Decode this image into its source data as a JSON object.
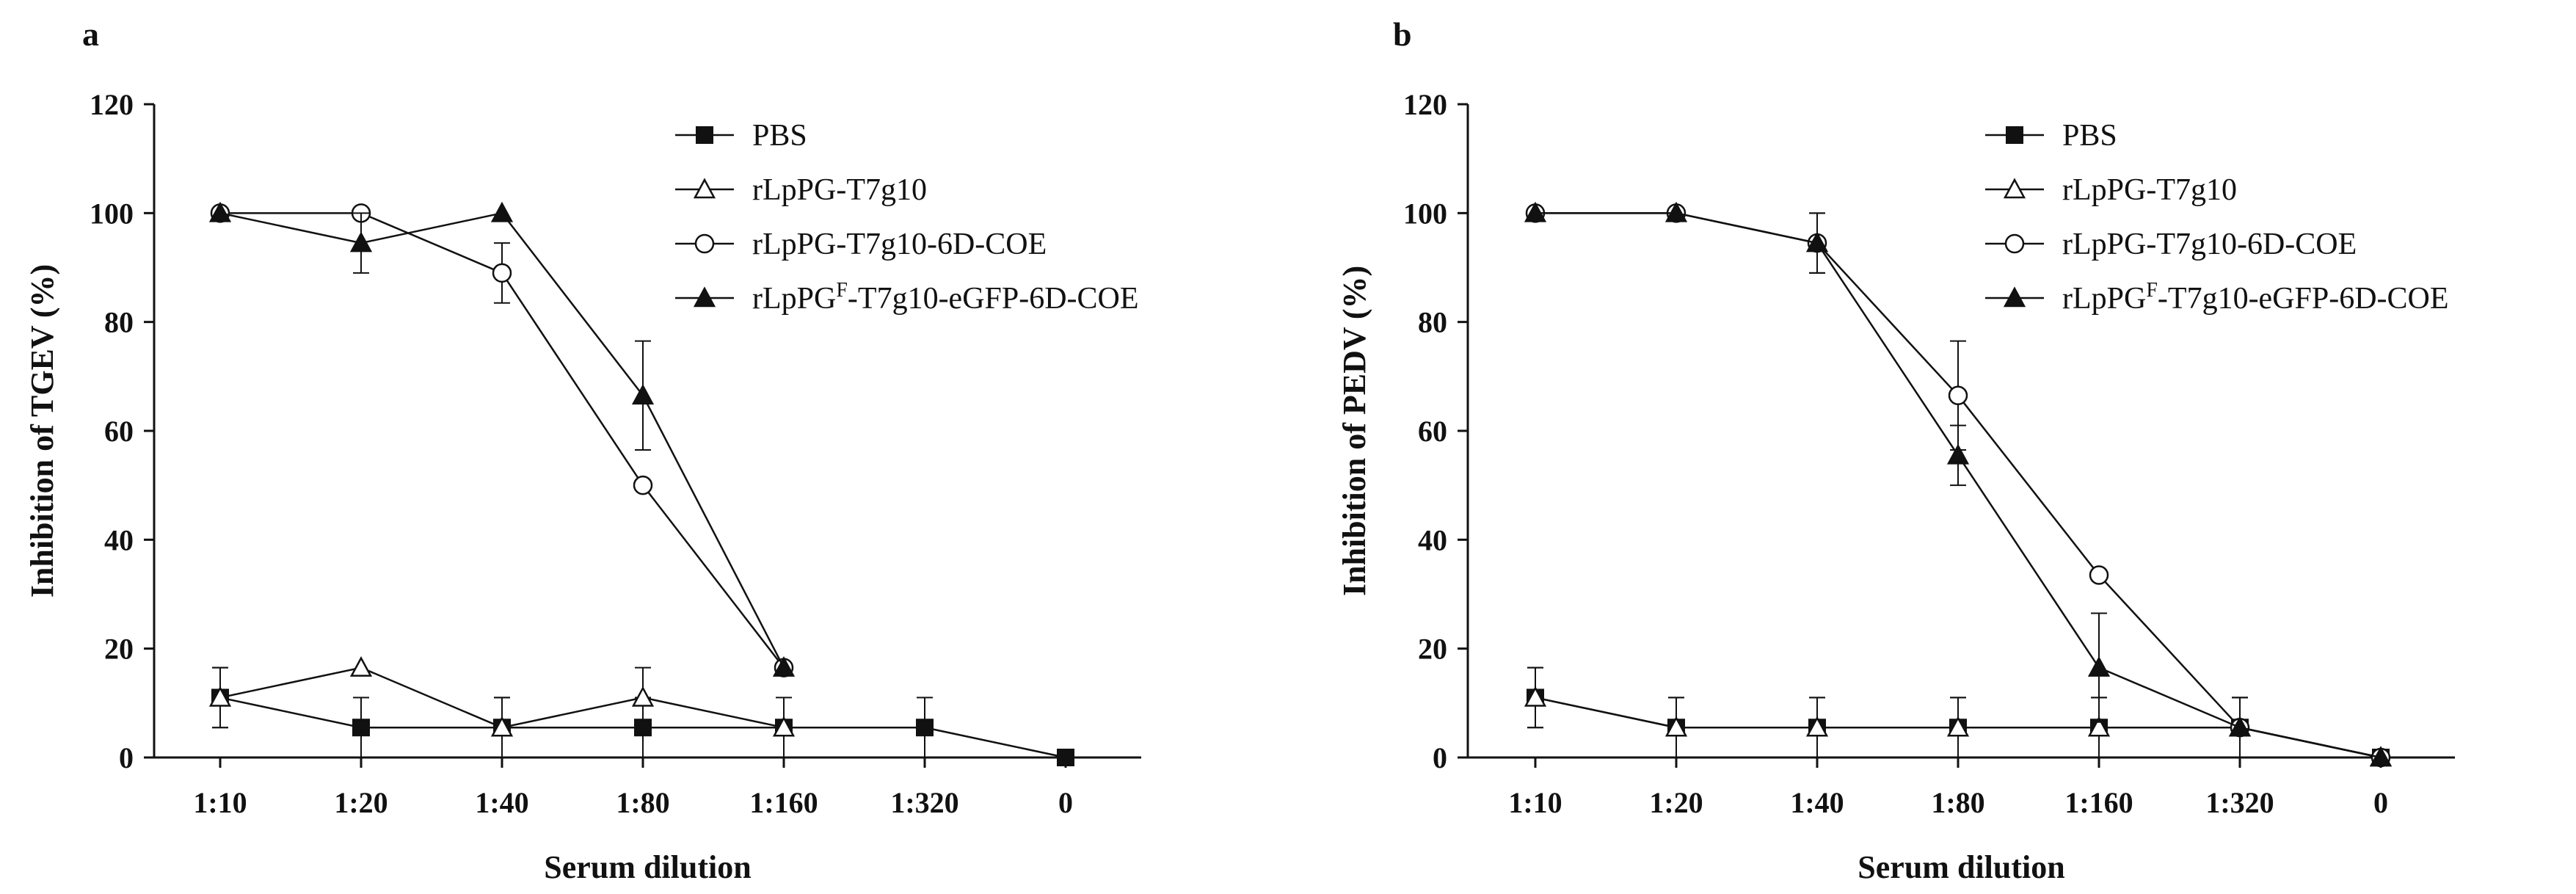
{
  "chart_data": [
    {
      "type": "line",
      "panel_label": "a",
      "xlabel": "Serum dilution",
      "ylabel": "Inhibition of TGEV (%)",
      "categories": [
        "1:10",
        "1:20",
        "1:40",
        "1:80",
        "1:160",
        "1:320",
        "0"
      ],
      "ylim": [
        0,
        120
      ],
      "yticks": [
        "0",
        "20",
        "40",
        "60",
        "80",
        "100",
        "120"
      ],
      "legend_position": "top-right",
      "series": [
        {
          "name": "PBS",
          "marker": "square-filled",
          "values": [
            11,
            5.5,
            5.5,
            5.5,
            5.5,
            5.5,
            0
          ],
          "errors": [
            5.5,
            5.5,
            5.5,
            5.5,
            0,
            5.5,
            0
          ]
        },
        {
          "name": "rLpPG-T7g10",
          "marker": "triangle-open",
          "values": [
            11,
            16.5,
            5.5,
            11,
            5.5,
            null,
            null
          ],
          "errors": [
            5.5,
            0,
            5.5,
            5.5,
            5.5,
            null,
            null
          ]
        },
        {
          "name": "rLpPG-T7g10-6D-COE",
          "marker": "circle-open",
          "values": [
            100,
            100,
            89,
            50,
            16.5,
            null,
            null
          ],
          "errors": [
            0,
            0,
            5.5,
            0,
            0,
            null,
            null
          ]
        },
        {
          "name": "rLpPG",
          "name_sup": "F",
          "name_rest": "-T7g10-eGFP-6D-COE",
          "marker": "triangle-filled",
          "values": [
            100,
            94.5,
            100,
            66.5,
            16.5,
            null,
            null
          ],
          "errors": [
            0,
            5.5,
            0,
            10,
            0,
            null,
            null
          ]
        }
      ]
    },
    {
      "type": "line",
      "panel_label": "b",
      "xlabel": "Serum dilution",
      "ylabel": "Inhibition of PEDV (%)",
      "categories": [
        "1:10",
        "1:20",
        "1:40",
        "1:80",
        "1:160",
        "1:320",
        "0"
      ],
      "ylim": [
        0,
        120
      ],
      "yticks": [
        "0",
        "20",
        "40",
        "60",
        "80",
        "100",
        "120"
      ],
      "legend_position": "top-right",
      "series": [
        {
          "name": "PBS",
          "marker": "square-filled",
          "values": [
            11,
            5.5,
            5.5,
            5.5,
            5.5,
            5.5,
            0
          ],
          "errors": [
            5.5,
            5.5,
            5.5,
            5.5,
            5.5,
            5.5,
            0
          ]
        },
        {
          "name": "rLpPG-T7g10",
          "marker": "triangle-open",
          "values": [
            11,
            5.5,
            5.5,
            5.5,
            5.5,
            5.5,
            0
          ],
          "errors": [
            5.5,
            5.5,
            5.5,
            5.5,
            5.5,
            5.5,
            0
          ]
        },
        {
          "name": "rLpPG-T7g10-6D-COE",
          "marker": "circle-open",
          "values": [
            100,
            100,
            94.5,
            66.5,
            33.5,
            5.5,
            0
          ],
          "errors": [
            0,
            0,
            5.5,
            10,
            0,
            0,
            0
          ]
        },
        {
          "name": "rLpPG",
          "name_sup": "F",
          "name_rest": "-T7g10-eGFP-6D-COE",
          "marker": "triangle-filled",
          "values": [
            100,
            100,
            94.5,
            55.5,
            16.5,
            5.5,
            0
          ],
          "errors": [
            0,
            0,
            5.5,
            5.5,
            10,
            5.5,
            0
          ]
        }
      ]
    }
  ]
}
